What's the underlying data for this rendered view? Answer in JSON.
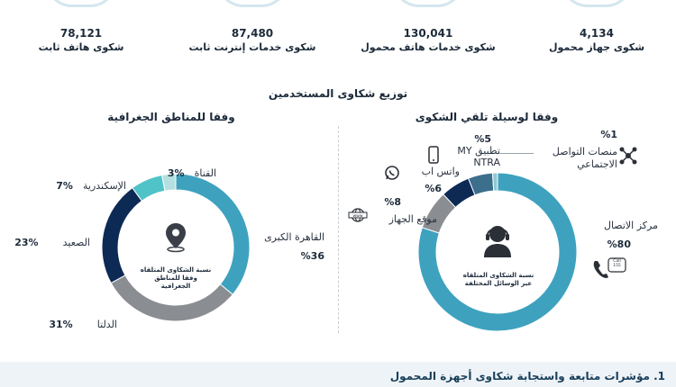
{
  "stats": [
    {
      "value": "4,134",
      "label": "شكوى جهاز محمول"
    },
    {
      "value": "130,041",
      "label": "شكوى خدمات هاتف محمول"
    },
    {
      "value": "87,480",
      "label": "شكوى خدمات إنترنت ثابت"
    },
    {
      "value": "78,121",
      "label": "شكوى هاتف ثابت"
    }
  ],
  "section_title": "توزيع شكاوى المستخدمين",
  "right_panel": {
    "title": "وفقا لوسيلة تلقي الشكوى",
    "center_text": "نسبة الشكاوى المتلقاه عبر الوسائل المختلفة",
    "items": [
      {
        "label": "منصات التواصل الاجتماعي",
        "pct": "%1",
        "value": 1,
        "color": "#8fc9d4",
        "icon": "social-network-icon"
      },
      {
        "label": "تطبيق MY NTRA",
        "pct": "%5",
        "value": 5,
        "color": "#3b6f8c",
        "icon": "mobile-phone-icon"
      },
      {
        "label": "واتس اب",
        "pct": "%6",
        "value": 6,
        "color": "#0d2a55",
        "icon": "whatsapp-icon"
      },
      {
        "label": "موقع الجهاز",
        "pct": "%8",
        "value": 8,
        "color": "#8a8d91",
        "icon": "website-icon"
      },
      {
        "label": "مركز الاتصال",
        "pct": "%80",
        "value": 80,
        "color": "#3ea2bf",
        "icon": "call-center-icon"
      }
    ],
    "call_badge": "Call 155"
  },
  "left_panel": {
    "title": "وفقا للمناطق الجغرافية",
    "center_text": "نسبة الشكاوى المتلقاه وفقا للمناطق الجغرافية",
    "items": [
      {
        "label": "القاهرة الكبرى",
        "pct": "%36",
        "value": 36,
        "color": "#3ea2bf"
      },
      {
        "label": "الدلتا",
        "pct": "%31",
        "value": 31,
        "color": "#8a8d91"
      },
      {
        "label": "الصعيد",
        "pct": "%23",
        "value": 23,
        "color": "#0d2a55"
      },
      {
        "label": "الإسكندرية",
        "pct": "%7",
        "value": 7,
        "color": "#4fc3c8"
      },
      {
        "label": "القناة",
        "pct": "%3",
        "value": 3,
        "color": "#b5dfe0"
      }
    ]
  },
  "footer": {
    "title": "1. مؤشرات متابعة واستجابة شكاوى أجهزة المحمول"
  }
}
